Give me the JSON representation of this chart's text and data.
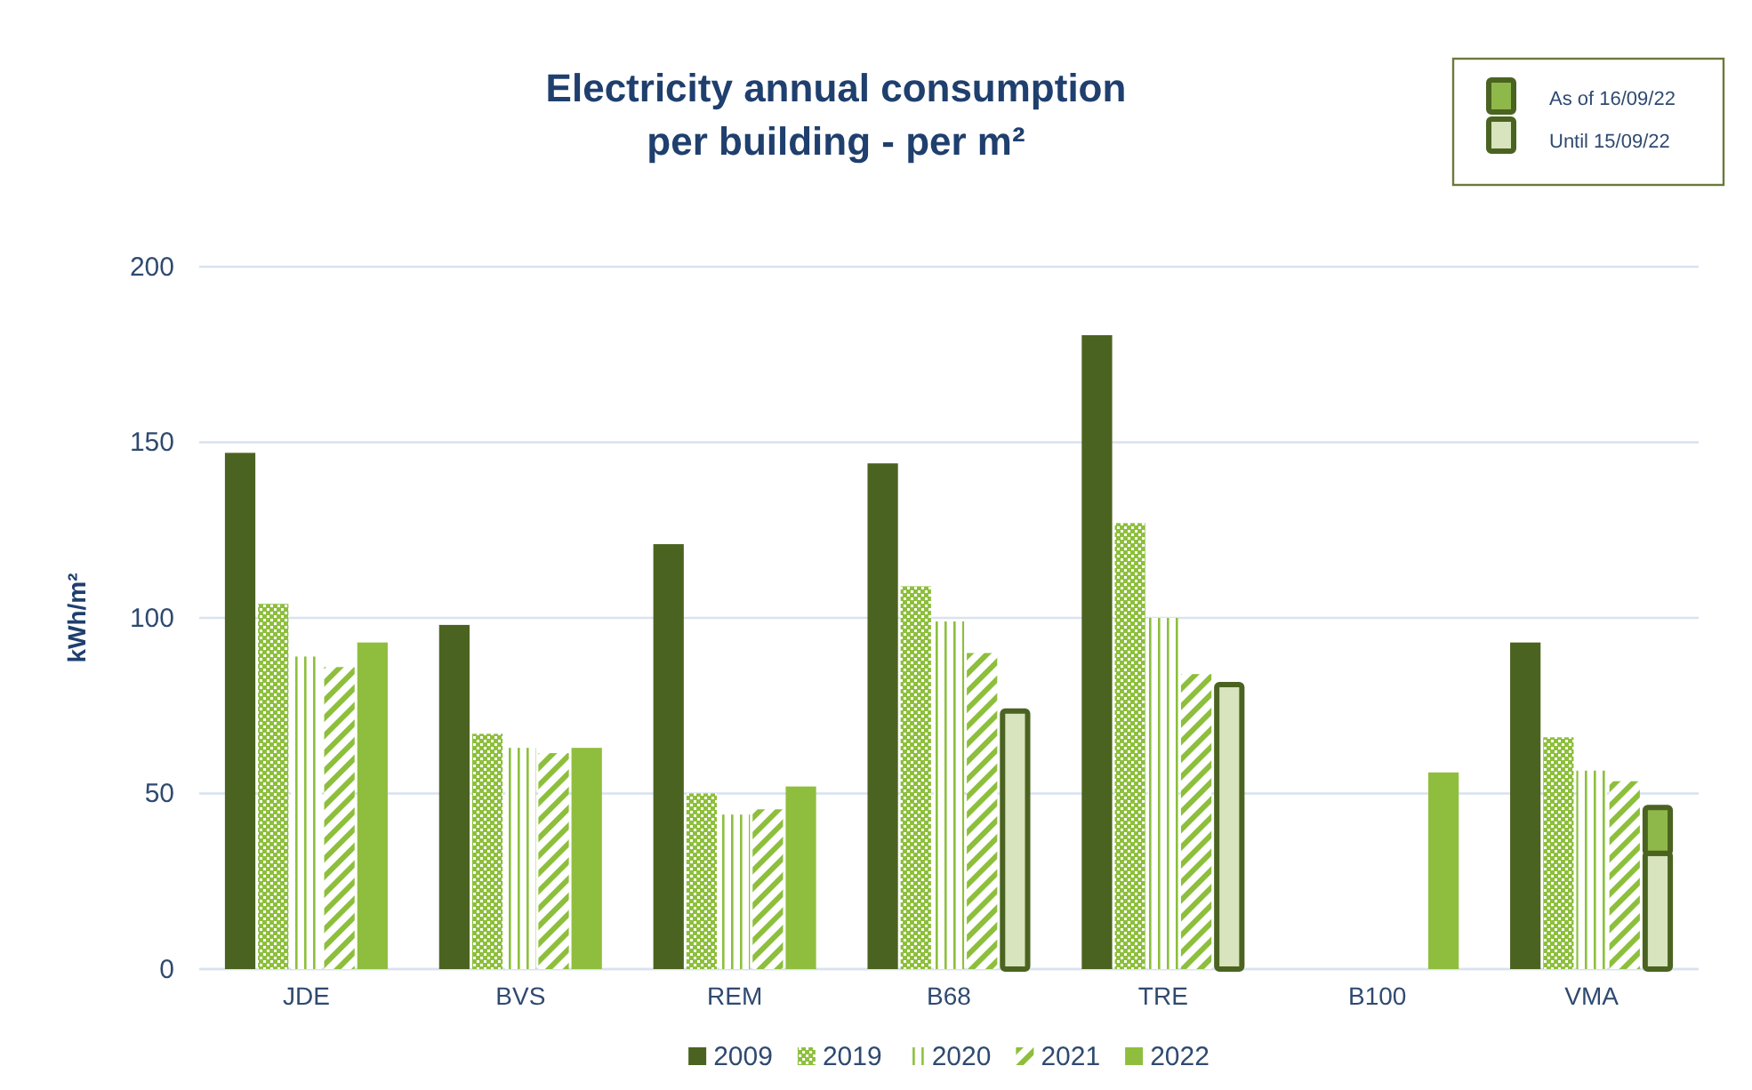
{
  "chart_data": {
    "type": "bar",
    "title": "Electricity annual consumption\nper building - per m²",
    "ylabel": "kWh/m²",
    "categories": [
      "JDE",
      "BVS",
      "REM",
      "B68",
      "TRE",
      "B100",
      "VMA"
    ],
    "ylim": [
      0,
      200
    ],
    "yticks": [
      0,
      50,
      100,
      150,
      200
    ],
    "grid": "y",
    "legend": "top right",
    "series": [
      {
        "name": "2009",
        "color": "#4b6320",
        "values": [
          147,
          98,
          121,
          144,
          180.5,
          null,
          93
        ]
      },
      {
        "name": "2019",
        "color": "#8dbf3c",
        "values": [
          104,
          67,
          50,
          109,
          127,
          null,
          66
        ]
      },
      {
        "name": "2020",
        "color": "#8dbf3c",
        "values": [
          89,
          63,
          44,
          99,
          100,
          null,
          56.5
        ]
      },
      {
        "name": "2021",
        "color": "#8dbf3c",
        "values": [
          86,
          61.5,
          45.5,
          90,
          84,
          null,
          53.5
        ]
      },
      {
        "name": "2022",
        "color": "#8fbe3e",
        "values": [
          93,
          63,
          52,
          null,
          null,
          56,
          null
        ]
      },
      {
        "name": "Until 15/09/22",
        "color": "#d8e4bd",
        "values": [
          null,
          null,
          null,
          73.5,
          81,
          null,
          33
        ]
      },
      {
        "name": "As of 16/09/22",
        "color": "#8fb84a",
        "base": [
          null,
          null,
          null,
          null,
          null,
          null,
          33
        ],
        "values": [
          null,
          null,
          null,
          null,
          null,
          null,
          13
        ]
      }
    ]
  }
}
